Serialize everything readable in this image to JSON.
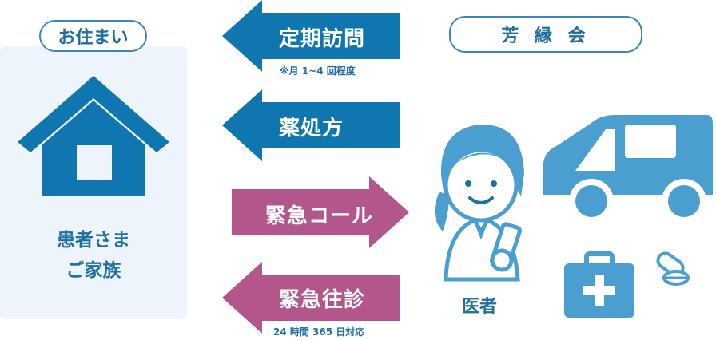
{
  "home": {
    "title": "お住まい",
    "caption_line1": "患者さま",
    "caption_line2": "ご家族"
  },
  "organization": {
    "title": "芳 縁 会"
  },
  "arrows": [
    {
      "label": "定期訪問",
      "note": "※月 1~4 回程度",
      "direction": "left",
      "color": "#0f76b0"
    },
    {
      "label": "薬処方",
      "note": "",
      "direction": "left",
      "color": "#0f76b0"
    },
    {
      "label": "緊急コール",
      "note": "",
      "direction": "right",
      "color": "#b2568c"
    },
    {
      "label": "緊急往診",
      "note": "24 時間 365 日対応",
      "direction": "left",
      "color": "#b2568c"
    }
  ],
  "doctor": {
    "label": "医者"
  },
  "colors": {
    "blue": "#0f76b0",
    "light_blue": "#4a9fd0",
    "magenta": "#b2568c",
    "panel": "#eef4fb"
  },
  "icons": [
    "house-icon",
    "doctor-icon",
    "ambulance-icon",
    "medical-kit-icon",
    "pills-icon"
  ]
}
